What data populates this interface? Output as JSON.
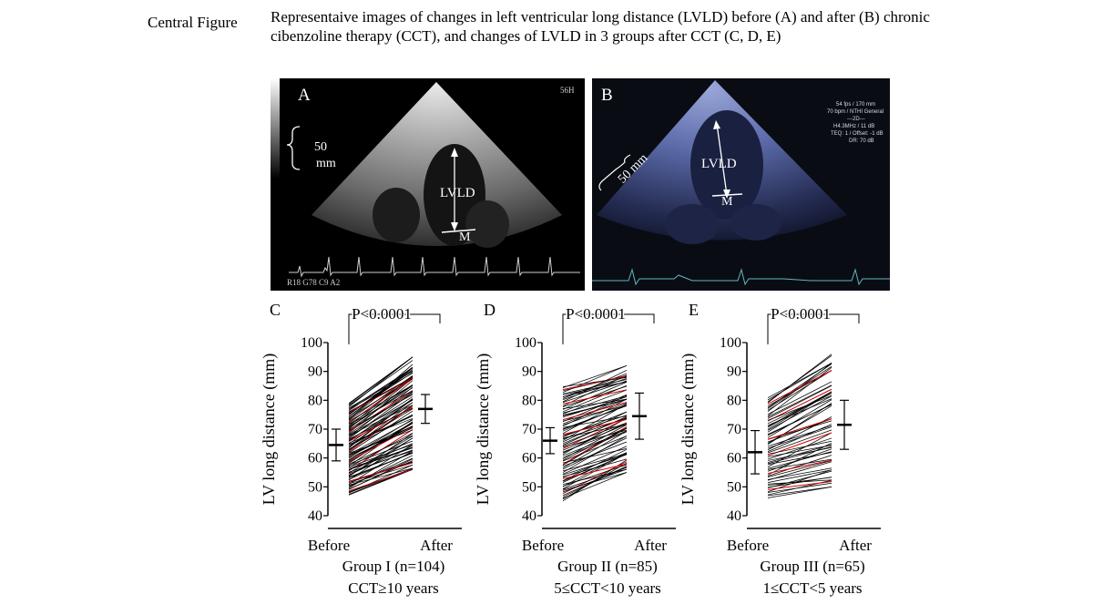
{
  "figure": {
    "label": "Central Figure",
    "caption": "Representaive images of changes in left ventricular long distance (LVLD) before (A) and after (B) chronic cibenzoline therapy (CCT), and changes of LVLD in 3 groups after CCT (C, D, E)"
  },
  "echo_a": {
    "panel_letter": "A",
    "scale_value": "50",
    "scale_unit": "mm",
    "lvld_label": "LVLD",
    "m_label": "M",
    "top_right": "56H",
    "bottom_left": "R18 G78 C9 A2"
  },
  "echo_b": {
    "panel_letter": "B",
    "scale_label": "50 mm",
    "lvld_label": "LVLD",
    "m_label": "M",
    "info": [
      "54 fps / 170 mm",
      "70 bpm / NTHI General",
      "---2D---",
      "H4.3MHz / 11 dB",
      "TEQ: 1 / Offset: -1 dB",
      "DR: 70 dB"
    ]
  },
  "chart_data": [
    {
      "type": "line",
      "panel": "C",
      "title": "P<0.0001",
      "ylabel": "LV long distance (mm)",
      "categories": [
        "Before",
        "After"
      ],
      "ylim": [
        40,
        100
      ],
      "yticks": [
        "40",
        "50",
        "60",
        "70",
        "80",
        "90",
        "100"
      ],
      "group_label": "Group I (n=104)",
      "group_sub": "CCT≥10 years",
      "n_lines": 104,
      "before_range": [
        47,
        79
      ],
      "after_range": [
        56,
        95
      ],
      "mean_sd": {
        "before": [
          64.5,
          5.5
        ],
        "after": [
          77,
          5
        ]
      },
      "line_color": "#000000",
      "highlight_color": "#cc0000"
    },
    {
      "type": "line",
      "panel": "D",
      "title": "P<0.0001",
      "ylabel": "LV long distance (mm)",
      "categories": [
        "Before",
        "After"
      ],
      "ylim": [
        40,
        100
      ],
      "yticks": [
        "40",
        "50",
        "60",
        "70",
        "80",
        "90",
        "100"
      ],
      "group_label": "Group II (n=85)",
      "group_sub": "5≤CCT<10 years",
      "n_lines": 85,
      "before_range": [
        45,
        85
      ],
      "after_range": [
        55,
        92
      ],
      "mean_sd": {
        "before": [
          66,
          4.5
        ],
        "after": [
          74.5,
          8
        ]
      },
      "line_color": "#000000",
      "highlight_color": "#cc0000"
    },
    {
      "type": "line",
      "panel": "E",
      "title": "P<0.0001",
      "ylabel": "LV long distance (mm)",
      "categories": [
        "Before",
        "After"
      ],
      "ylim": [
        40,
        100
      ],
      "yticks": [
        "40",
        "50",
        "60",
        "70",
        "80",
        "90",
        "100"
      ],
      "group_label": "Group III (n=65)",
      "group_sub": "1≤CCT<5 years",
      "n_lines": 65,
      "before_range": [
        46,
        81
      ],
      "after_range": [
        50,
        96
      ],
      "mean_sd": {
        "before": [
          62,
          7.5
        ],
        "after": [
          71.5,
          8.5
        ]
      },
      "line_color": "#000000",
      "highlight_color": "#cc0000"
    }
  ]
}
